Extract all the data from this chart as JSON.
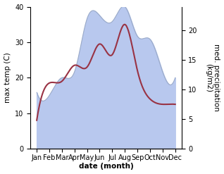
{
  "months": [
    "Jan",
    "Feb",
    "Mar",
    "Apr",
    "May",
    "Jun",
    "Jul",
    "Aug",
    "Sep",
    "Oct",
    "Nov",
    "Dec"
  ],
  "month_x": [
    0,
    1,
    2,
    3,
    4,
    5,
    6,
    7,
    8,
    9,
    10,
    11
  ],
  "temp_data": [
    8.0,
    18.5,
    19.0,
    23.5,
    23.0,
    29.5,
    26.5,
    35.0,
    22.0,
    14.0,
    12.5,
    12.5
  ],
  "precip_data": [
    9.5,
    9.0,
    12.0,
    13.0,
    22.0,
    22.5,
    21.5,
    24.0,
    19.0,
    18.5,
    13.0,
    12.0
  ],
  "temp_color": "#993344",
  "precip_color": "#9aaac8",
  "precip_fill_color": "#b8c8ee",
  "left_ylim": [
    0,
    40
  ],
  "right_ylim": [
    0,
    24
  ],
  "right_yticks": [
    0,
    5,
    10,
    15,
    20
  ],
  "left_yticks": [
    0,
    10,
    20,
    30,
    40
  ],
  "xlabel": "date (month)",
  "ylabel_left": "max temp (C)",
  "ylabel_right": "med. precipitation\n(kg/m2)",
  "axis_fontsize": 7.5,
  "tick_fontsize": 7,
  "line_width": 1.5,
  "background_color": "#ffffff"
}
